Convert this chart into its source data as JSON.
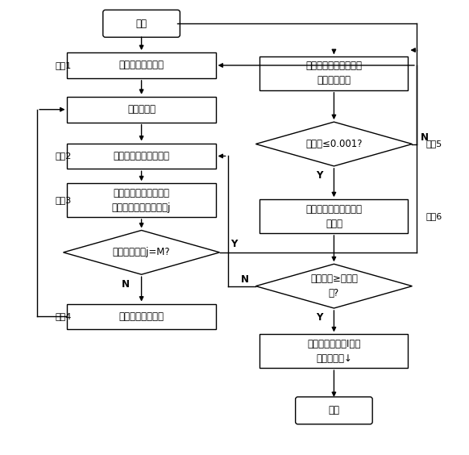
{
  "bg_color": "#ffffff",
  "text_color": "#000000",
  "font_size": 9,
  "start_text": "开始",
  "end_text": "结束",
  "left_boxes": [
    {
      "text": "尺寸误差模拟函数",
      "step": "步骤1"
    },
    {
      "text": "减少截面数",
      "step": ""
    },
    {
      "text": "某个测量点的实际直径",
      "step": "步骤2"
    },
    {
      "text": "根据测点不确定度产生\n可能的随机测点集次数j",
      "step": "步骤3"
    },
    {
      "text": "计算极限当量尺寸",
      "step": "步骤4"
    }
  ],
  "left_diamond": {
    "text": "达到模拟次数j=M?"
  },
  "right_boxes": [
    {
      "text": "计算极限当量尺寸的平\n均值的变化量",
      "step": ""
    },
    {
      "text": "计算截面个数产生的测\n量误差",
      "step": "步骤6"
    },
    {
      "text": "最佳截面个数为I，计\n算测量间距↓",
      "step": ""
    }
  ],
  "right_diamonds": [
    {
      "text": "变化量≤0.001?",
      "step": "步骤5"
    },
    {
      "text": "测量误差≥测量允\n差?",
      "step": ""
    }
  ],
  "y_labels": [
    "Y",
    "Y",
    "N",
    "N",
    "Y",
    "Y",
    "N"
  ]
}
